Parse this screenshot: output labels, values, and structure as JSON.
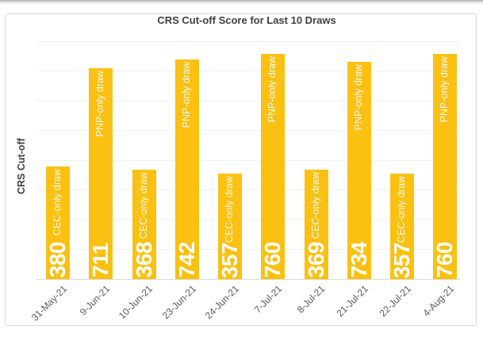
{
  "colors": {
    "bar": "#FBC112",
    "bar_value_text": "#FFFFFF",
    "title_text": "#3F3F3F",
    "axis_text": "#595959",
    "gridline": "#F1F1F1",
    "frame_border": "#D9D9D9"
  },
  "chart_data": {
    "type": "bar",
    "title": "CRS Cut-off Score for Last 10 Draws",
    "ylabel": "CRS Cut-off",
    "xlabel": "",
    "categories": [
      "31-May-21",
      "9-Jun-21",
      "10-Jun-21",
      "23-Jun-21",
      "24-Jun-21",
      "7-Jul-21",
      "8-Jul-21",
      "21-Jul-21",
      "22-Jul-21",
      "4-Aug-21"
    ],
    "values": [
      380,
      711,
      368,
      742,
      357,
      760,
      369,
      734,
      357,
      760
    ],
    "bar_labels": [
      "CEC-only draw",
      "PNP-only draw",
      "CEC-only draw",
      "PNP-only draw",
      "CEC-only draw",
      "PNP-only draw",
      "CEC-only draw",
      "PNP-only draw",
      "CEC-only draw",
      "PNP-only draw"
    ],
    "value_label_position": "inside-base",
    "bar_label_position": "inside-end",
    "ylim": [
      0,
      800
    ],
    "gridline_step": 100,
    "grid": true,
    "legend": false,
    "y_tick_labels_visible": false,
    "bar_color": "#FBC112"
  }
}
